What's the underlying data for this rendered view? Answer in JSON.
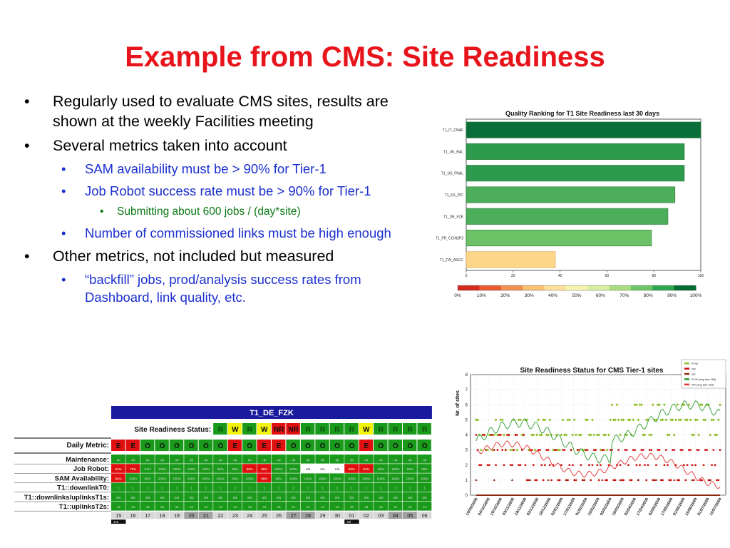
{
  "slide": {
    "title": "Example from CMS: Site Readiness",
    "bullets": [
      {
        "level": 1,
        "text": "Regularly used to evaluate CMS sites, results are shown at the weekly Facilities meeting"
      },
      {
        "level": 1,
        "text": "Several metrics taken into account"
      },
      {
        "level": 2,
        "text": "SAM availability must be > 90% for Tier-1"
      },
      {
        "level": 2,
        "text": "Job Robot success rate must be > 90% for Tier-1"
      },
      {
        "level": 3,
        "text": "Submitting about 600 jobs / (day*site)"
      },
      {
        "level": 2,
        "text": "Number of commissioned links must be high enough"
      },
      {
        "level": 1,
        "text": "Other metrics, not included but measured"
      },
      {
        "level": 2,
        "text": "“backfill” jobs, prod/analysis success rates from Dashboard, link quality, etc."
      }
    ],
    "bullet_glyphs": {
      "1": "•",
      "2": "•",
      "3": "•"
    }
  },
  "colors": {
    "title": "#e8141b",
    "level1": "#000000",
    "level2": "#1b2fcf",
    "level3": "#0a7a15",
    "ok_green": "#1a9a1a",
    "error_red": "#e01010",
    "warn_yellow": "#f2f20a",
    "header_blue": "#1a1a9e",
    "gray": "#a0a0a0"
  },
  "chart_data": [
    {
      "type": "bar",
      "orientation": "horizontal",
      "title": "Quality Ranking for T1 Site Readiness last 30 days",
      "categories": [
        "T1_IT_CNAF",
        "T1_UK_RAL",
        "T1_US_FNAL",
        "T1_ES_PIC",
        "T1_DE_FZK",
        "T1_FR_CCIN2P3",
        "T1_TW_ASGC"
      ],
      "values": [
        100,
        93,
        93,
        89,
        86,
        79,
        38
      ],
      "xlim": [
        0,
        100
      ],
      "x_ticks": [
        "0",
        "20",
        "40",
        "60",
        "80",
        "100"
      ],
      "colorbar_ticks": [
        "0%",
        "10%",
        "20%",
        "30%",
        "40%",
        "50%",
        "60%",
        "70%",
        "80%",
        "90%",
        "100%"
      ],
      "colorbar_colors": [
        "#d42a1e",
        "#e85a30",
        "#f09050",
        "#f8c070",
        "#fde09a",
        "#f6f2b0",
        "#d8eea0",
        "#a8dc80",
        "#6cc466",
        "#2ea650",
        "#006b30"
      ]
    },
    {
      "type": "line",
      "title": "Site Readiness Status for CMS Tier-1 sites",
      "ylabel": "Nr. of sites",
      "ylim": [
        0,
        8
      ],
      "y_ticks": [
        "0",
        "1",
        "2",
        "3",
        "4",
        "5",
        "6",
        "7",
        "8"
      ],
      "x_ticks": [
        "19/09/2008",
        "04/10/2008",
        "19/10/2008",
        "03/11/2008",
        "18/11/2008",
        "03/12/2008",
        "18/12/2008",
        "02/01/2009",
        "17/01/2009",
        "01/02/2009",
        "16/02/2009",
        "03/03/2009",
        "18/03/2009",
        "02/04/2009",
        "17/04/2009",
        "02/05/2009",
        "17/05/2009",
        "01/06/2009",
        "16/06/2009",
        "01/07/2009",
        "16/07/2009"
      ],
      "legend": [
        "R+W",
        "NR",
        "SD",
        "R+W (avg last 15d)",
        "NR (avg last 15d)"
      ],
      "legend_colors": [
        "#8fbf2a",
        "#d01010",
        "#8a2a10",
        "#2a9a2a",
        "#e03030"
      ]
    }
  ],
  "status_table": {
    "site": "T1_DE_FZK",
    "readiness_label": "Site Readiness Status:",
    "readiness": [
      "R",
      "W",
      "R",
      "W",
      "NR",
      "NR",
      "R",
      "R",
      "R",
      "R",
      "W",
      "R",
      "R",
      "R",
      "R"
    ],
    "daily_label": "Daily Metric:",
    "daily": [
      "E",
      "E",
      "O",
      "O",
      "O",
      "O",
      "O",
      "O",
      "E",
      "O",
      "E",
      "E",
      "O",
      "O",
      "O",
      "O",
      "O",
      "E",
      "O",
      "O",
      "O",
      "O"
    ],
    "rows": [
      {
        "label": "Maintenance:",
        "cells": [
          "up",
          "up",
          "up",
          "up",
          "up",
          "up",
          "up",
          "up",
          "up",
          "up",
          "up",
          "up",
          "up",
          "up",
          "up",
          "up",
          "up",
          "up",
          "up",
          "up",
          "up",
          "up"
        ]
      },
      {
        "label": "Job Robot:",
        "cells": [
          "84%",
          "79%",
          "97%",
          "100%",
          "100%",
          "100%",
          "100%",
          "99%",
          "99%",
          "88%",
          "89%",
          "100%",
          "100%",
          "n/a",
          "n/a",
          "n/a",
          "89%",
          "84%",
          "99%",
          "100%",
          "99%",
          "99%"
        ]
      },
      {
        "label": "SAM Availability:",
        "cells": [
          "86%",
          "100%",
          "99%",
          "100%",
          "100%",
          "100%",
          "100%",
          "100%",
          "90%",
          "100%",
          "88%",
          "96%",
          "100%",
          "100%",
          "100%",
          "100%",
          "100%",
          "100%",
          "100%",
          "100%",
          "100%",
          "100%"
        ]
      },
      {
        "label": "T1::downlinkT0:",
        "cells": [
          "1",
          "1",
          "1",
          "1",
          "1",
          "1",
          "1",
          "1",
          "1",
          "1",
          "1",
          "1",
          "1",
          "1",
          "1",
          "1",
          "1",
          "1",
          "1",
          "1",
          "1",
          "1"
        ]
      },
      {
        "label": "T1::downlinks/uplinksT1s:",
        "cells": [
          "6/6",
          "6/6",
          "6/6",
          "6/6",
          "6/6",
          "6/6",
          "6/6",
          "6/6",
          "6/6",
          "6/6",
          "6/6",
          "6/6",
          "6/6",
          "6/6",
          "6/6",
          "6/6",
          "6/6",
          "6/6",
          "6/6",
          "6/6",
          "6/6",
          "6/6"
        ]
      },
      {
        "label": "T1::uplinksT2s:",
        "cells": [
          "44",
          "44",
          "44",
          "44",
          "44",
          "44",
          "44",
          "44",
          "44",
          "44",
          "44",
          "44",
          "44",
          "44",
          "44",
          "44",
          "44",
          "44",
          "44",
          "44",
          "44",
          "44"
        ]
      }
    ],
    "days": [
      "15",
      "16",
      "17",
      "18",
      "19",
      "20",
      "21",
      "22",
      "23",
      "24",
      "25",
      "26",
      "27",
      "28",
      "29",
      "30",
      "01",
      "02",
      "03",
      "04",
      "05",
      "06"
    ],
    "months": [
      "Jun",
      "Jul"
    ]
  }
}
